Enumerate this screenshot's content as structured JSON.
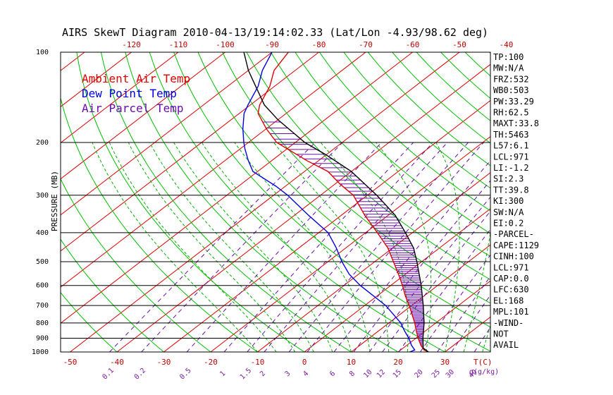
{
  "title": "AIRS SkewT Diagram 2010-04-13/19:14:02.33 (Lat/Lon -4.93/98.62 deg)",
  "colors": {
    "isotherm": "#e00000",
    "dry_adiabat": "#00c000",
    "moist_adiabat": "#00b000",
    "mixing_ratio": "#6a0dad",
    "ambient": "#e00000",
    "dewpoint": "#0000e0",
    "parcel": "#000000",
    "cape_hatch": "#6a0dad",
    "isobar": "#000000"
  },
  "chart_data": {
    "type": "line",
    "title": "AIRS SkewT Diagram 2010-04-13/19:14:02.33 (Lat/Lon -4.93/98.62 deg)",
    "ylabel": "PRESSURE (MB)",
    "y_scale": "log",
    "ylim": [
      1000,
      100
    ],
    "pressure_ticks": [
      "100",
      "200",
      "300",
      "400",
      "500",
      "600",
      "700",
      "800",
      "900",
      "1000"
    ],
    "pressure_tick_values": [
      100,
      200,
      300,
      400,
      500,
      600,
      700,
      800,
      900,
      1000
    ],
    "top_temp_ticks": [
      "-120",
      "-110",
      "-100",
      "-90",
      "-80",
      "-70",
      "-60",
      "-50",
      "-40"
    ],
    "top_temp_values": [
      -120,
      -110,
      -100,
      -90,
      -80,
      -70,
      -60,
      -50,
      -40
    ],
    "bottom_temp_ticks": [
      "-50",
      "-40",
      "-30",
      "-20",
      "-10",
      "0",
      "10",
      "20",
      "30"
    ],
    "bottom_temp_values": [
      -50,
      -40,
      -30,
      -20,
      -10,
      0,
      10,
      20,
      30
    ],
    "xlabel_bottom": "T(C)",
    "mixing_ratio_labels": [
      "0.1",
      "0.2",
      "0.5",
      "1",
      "1.5",
      "2",
      "3",
      "4",
      "6",
      "8",
      "10",
      "12",
      "15",
      "20",
      "25",
      "30",
      "40"
    ],
    "mixing_ratio_values": [
      0.1,
      0.2,
      0.5,
      1,
      1.5,
      2,
      3,
      4,
      6,
      8,
      10,
      12,
      15,
      20,
      25,
      30,
      40
    ],
    "mixing_ratio_unit": "g(g/kg)",
    "legend": [
      "Ambient Air Temp",
      "Dew Point Temp",
      "Air Parcel Temp"
    ],
    "series": [
      {
        "name": "Ambient Air Temp",
        "points": [
          [
            1000,
            26.5
          ],
          [
            985,
            25.0
          ],
          [
            950,
            23.0
          ],
          [
            900,
            20.5
          ],
          [
            850,
            18.0
          ],
          [
            800,
            15.5
          ],
          [
            700,
            9.5
          ],
          [
            650,
            6.0
          ],
          [
            600,
            2.5
          ],
          [
            550,
            -1.5
          ],
          [
            500,
            -6.0
          ],
          [
            450,
            -11.0
          ],
          [
            400,
            -17.5
          ],
          [
            350,
            -25.0
          ],
          [
            300,
            -33.0
          ],
          [
            275,
            -39.0
          ],
          [
            250,
            -45.0
          ],
          [
            230,
            -52.5
          ],
          [
            210,
            -60.0
          ],
          [
            200,
            -64.0
          ],
          [
            180,
            -70.0
          ],
          [
            160,
            -76.0
          ],
          [
            150,
            -78.0
          ],
          [
            130,
            -81.0
          ],
          [
            115,
            -84.5
          ],
          [
            100,
            -86.5
          ]
        ]
      },
      {
        "name": "Dew Point Temp",
        "points": [
          [
            1000,
            22.5
          ],
          [
            985,
            23.0
          ],
          [
            950,
            21.0
          ],
          [
            900,
            18.5
          ],
          [
            850,
            15.5
          ],
          [
            800,
            12.5
          ],
          [
            700,
            4.5
          ],
          [
            600,
            -6.5
          ],
          [
            550,
            -12.0
          ],
          [
            500,
            -17.0
          ],
          [
            450,
            -22.0
          ],
          [
            400,
            -28.0
          ],
          [
            350,
            -37.0
          ],
          [
            300,
            -47.0
          ],
          [
            280,
            -52.0
          ],
          [
            250,
            -61.0
          ],
          [
            230,
            -65.0
          ],
          [
            210,
            -69.0
          ],
          [
            200,
            -71.0
          ],
          [
            180,
            -75.0
          ],
          [
            160,
            -79.0
          ],
          [
            150,
            -80.5
          ],
          [
            130,
            -83.5
          ],
          [
            115,
            -87.0
          ],
          [
            100,
            -90.0
          ]
        ]
      },
      {
        "name": "Air Parcel Temp",
        "points": [
          [
            1000,
            26.5
          ],
          [
            971,
            24.3
          ],
          [
            900,
            21.5
          ],
          [
            800,
            17.5
          ],
          [
            700,
            12.5
          ],
          [
            600,
            6.5
          ],
          [
            500,
            -1.0
          ],
          [
            450,
            -5.5
          ],
          [
            400,
            -11.5
          ],
          [
            350,
            -18.5
          ],
          [
            300,
            -28.0
          ],
          [
            250,
            -40.0
          ],
          [
            220,
            -50.0
          ],
          [
            200,
            -58.0
          ],
          [
            168,
            -70.0
          ],
          [
            150,
            -77.0
          ],
          [
            130,
            -84.0
          ],
          [
            115,
            -90.0
          ],
          [
            100,
            -96.0
          ]
        ]
      }
    ],
    "cape_shading": {
      "from_pressure": 971,
      "to_pressure": 168
    }
  },
  "axes": {
    "ylabel": "PRESSURE (MB)",
    "xunit": "T(C)"
  },
  "stats": [
    "TP:100",
    "MW:N/A",
    "FRZ:532",
    "WB0:503",
    "PW:33.29",
    "RH:62.5",
    "MAXT:33.8",
    "TH:5463",
    "L57:6.1",
    "LCL:971",
    "LI:-1.2",
    "SI:2.3",
    "TT:39.8",
    "KI:300",
    "SW:N/A",
    "EI:0.2",
    "-PARCEL-",
    "CAPE:1129",
    "CINH:100",
    "LCL:971",
    "CAP:0.0",
    "LFC:630",
    "EL:168",
    "MPL:101",
    "-WIND-",
    "NOT",
    "AVAIL"
  ]
}
